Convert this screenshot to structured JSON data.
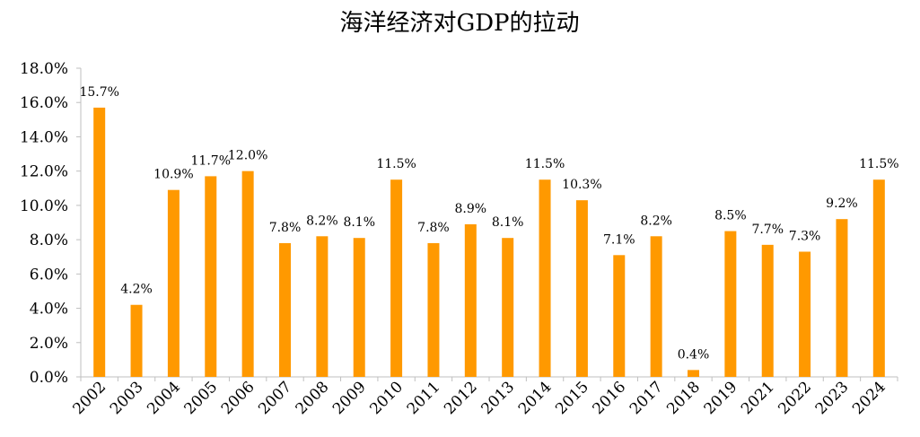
{
  "chart_data": {
    "type": "bar",
    "title": "海洋经济对GDP的拉动",
    "xlabel": "",
    "ylabel": "",
    "categories": [
      "2002",
      "2003",
      "2004",
      "2005",
      "2006",
      "2007",
      "2008",
      "2009",
      "2010",
      "2011",
      "2012",
      "2013",
      "2014",
      "2015",
      "2016",
      "2017",
      "2018",
      "2019",
      "2021",
      "2022",
      "2023",
      "2024"
    ],
    "values": [
      15.7,
      4.2,
      10.9,
      11.7,
      12.0,
      7.8,
      8.2,
      8.1,
      11.5,
      7.8,
      8.9,
      8.1,
      11.5,
      10.3,
      7.1,
      8.2,
      0.4,
      8.5,
      7.7,
      7.3,
      9.2,
      11.5
    ],
    "data_labels": [
      "15.7%",
      "4.2%",
      "10.9%",
      "11.7%",
      "12.0%",
      "7.8%",
      "8.2%",
      "8.1%",
      "11.5%",
      "7.8%",
      "8.9%",
      "8.1%",
      "11.5%",
      "10.3%",
      "7.1%",
      "8.2%",
      "0.4%",
      "8.5%",
      "7.7%",
      "7.3%",
      "9.2%",
      "11.5%"
    ],
    "ylim": [
      0,
      18
    ],
    "yticks": [
      0,
      2,
      4,
      6,
      8,
      10,
      12,
      14,
      16,
      18
    ],
    "ytick_labels": [
      "0.0%",
      "2.0%",
      "4.0%",
      "6.0%",
      "8.0%",
      "10.0%",
      "12.0%",
      "14.0%",
      "16.0%",
      "18.0%"
    ],
    "grid": false,
    "legend": "none",
    "bar_color": "#FF9900"
  }
}
